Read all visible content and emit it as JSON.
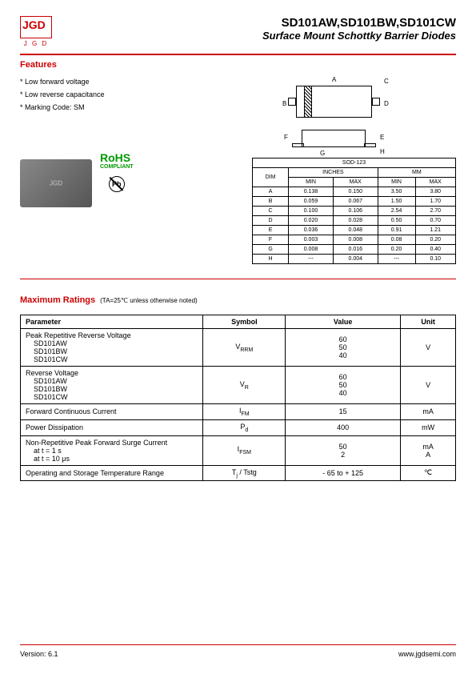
{
  "header": {
    "logo_text": "JGD",
    "logo_sub": "J G D",
    "title": "SD101AW,SD101BW,SD101CW",
    "subtitle": "Surface Mount Schottky Barrier Diodes"
  },
  "features": {
    "title": "Features",
    "items": [
      "* Low forward voltage",
      "* Low reverse capacitance",
      "* Marking Code: SM"
    ],
    "rohs": "RoHS",
    "rohs_sub": "COMPLIANT",
    "chip_label": "JGD",
    "pb_label": "Pb"
  },
  "dimensions": {
    "package": "SOD-123",
    "header_dim": "DIM",
    "header_inches": "INCHES",
    "header_mm": "MM",
    "header_min": "MIN",
    "header_max": "MAX",
    "rows": [
      {
        "dim": "A",
        "in_min": "0.138",
        "in_max": "0.150",
        "mm_min": "3.50",
        "mm_max": "3.80"
      },
      {
        "dim": "B",
        "in_min": "0.059",
        "in_max": "0.067",
        "mm_min": "1.50",
        "mm_max": "1.70"
      },
      {
        "dim": "C",
        "in_min": "0.100",
        "in_max": "0.106",
        "mm_min": "2.54",
        "mm_max": "2.70"
      },
      {
        "dim": "D",
        "in_min": "0.020",
        "in_max": "0.028",
        "mm_min": "0.50",
        "mm_max": "0.70"
      },
      {
        "dim": "E",
        "in_min": "0.036",
        "in_max": "0.048",
        "mm_min": "0.91",
        "mm_max": "1.21"
      },
      {
        "dim": "F",
        "in_min": "0.003",
        "in_max": "0.008",
        "mm_min": "0.08",
        "mm_max": "0.20"
      },
      {
        "dim": "G",
        "in_min": "0.008",
        "in_max": "0.016",
        "mm_min": "0.20",
        "mm_max": "0.40"
      },
      {
        "dim": "H",
        "in_min": "---",
        "in_max": "0.004",
        "mm_min": "---",
        "mm_max": "0.10"
      }
    ],
    "labels": {
      "a": "A",
      "b": "B",
      "c": "C",
      "d": "D",
      "e": "E",
      "f": "F",
      "g": "G",
      "h": "H"
    }
  },
  "ratings": {
    "title": "Maximum Ratings",
    "note": "(TA=25℃ unless otherwise noted)",
    "headers": {
      "param": "Parameter",
      "symbol": "Symbol",
      "value": "Value",
      "unit": "Unit"
    },
    "rows": [
      {
        "param": "Peak Repetitive Reverse Voltage",
        "subs": [
          "SD101AW",
          "SD101BW",
          "SD101CW"
        ],
        "symbol": "VRRM",
        "values": [
          "60",
          "50",
          "40"
        ],
        "unit": "V"
      },
      {
        "param": "Reverse Voltage",
        "subs": [
          "SD101AW",
          "SD101BW",
          "SD101CW"
        ],
        "symbol": "VR",
        "values": [
          "60",
          "50",
          "40"
        ],
        "unit": "V"
      },
      {
        "param": "Forward Continuous Current",
        "subs": [],
        "symbol": "IFM",
        "values": [
          "15"
        ],
        "unit": "mA"
      },
      {
        "param": "Power Dissipation",
        "subs": [],
        "symbol": "Pd",
        "values": [
          "400"
        ],
        "unit": "mW"
      },
      {
        "param": "Non-Repetitive Peak Forward Surge Current",
        "subs": [
          "at t = 1 s",
          "at t = 10 μs"
        ],
        "symbol": "IFSM",
        "values": [
          "50",
          "2"
        ],
        "unit_multi": [
          "mA",
          "A"
        ]
      },
      {
        "param": "Operating and Storage Temperature Range",
        "subs": [],
        "symbol": "Tj / Tstg",
        "values": [
          "- 65 to + 125"
        ],
        "unit": "℃"
      }
    ]
  },
  "footer": {
    "version": "Version: 6.1",
    "url": "www.jgdsemi.com"
  }
}
